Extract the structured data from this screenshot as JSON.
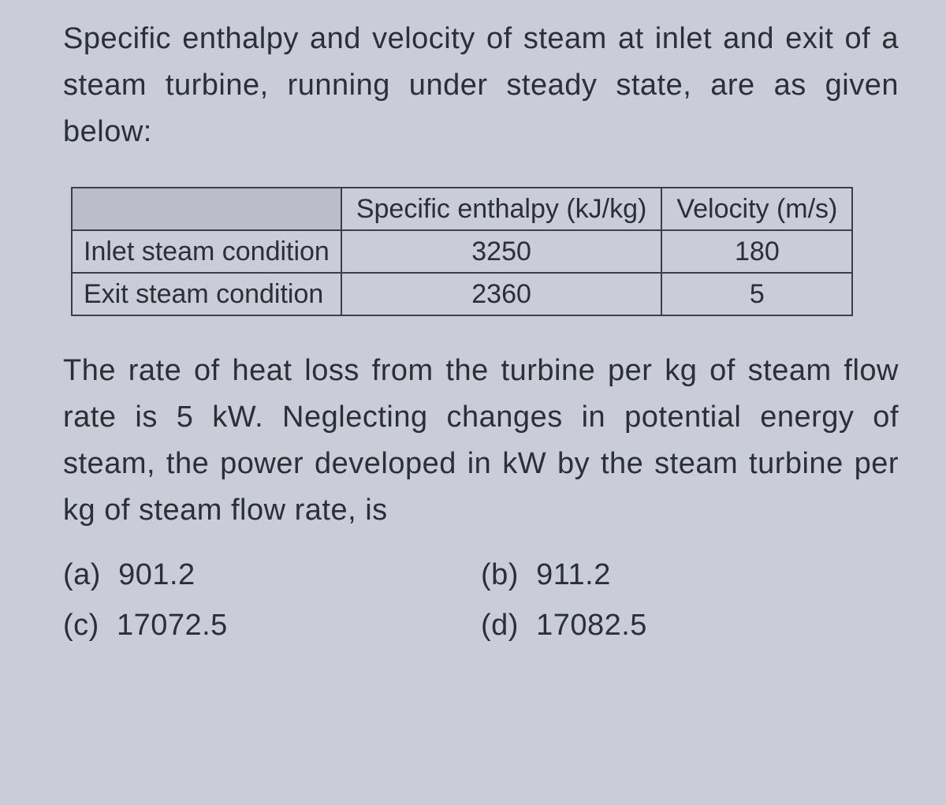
{
  "intro": "Specific enthalpy and velocity of steam at inlet and exit of a steam turbine, running under steady state, are as given below:",
  "table": {
    "columns": [
      "Specific enthalpy (kJ/kg)",
      "Velocity (m/s)"
    ],
    "rows": [
      {
        "label": "Inlet steam condition",
        "enthalpy": "3250",
        "velocity": "180"
      },
      {
        "label": "Exit steam condition",
        "enthalpy": "2360",
        "velocity": "5"
      }
    ],
    "border_color": "#3b3f48",
    "font_size": 34
  },
  "body": "The rate of heat loss from the turbine per kg of steam flow rate is 5 kW. Neglecting changes in potential energy of steam, the power developed in kW by the steam turbine per kg of steam flow rate, is",
  "options": {
    "a": "901.2",
    "b": "911.2",
    "c": "17072.5",
    "d": "17082.5"
  },
  "colors": {
    "background": "#c8cdd7",
    "text": "#2a2f38"
  }
}
